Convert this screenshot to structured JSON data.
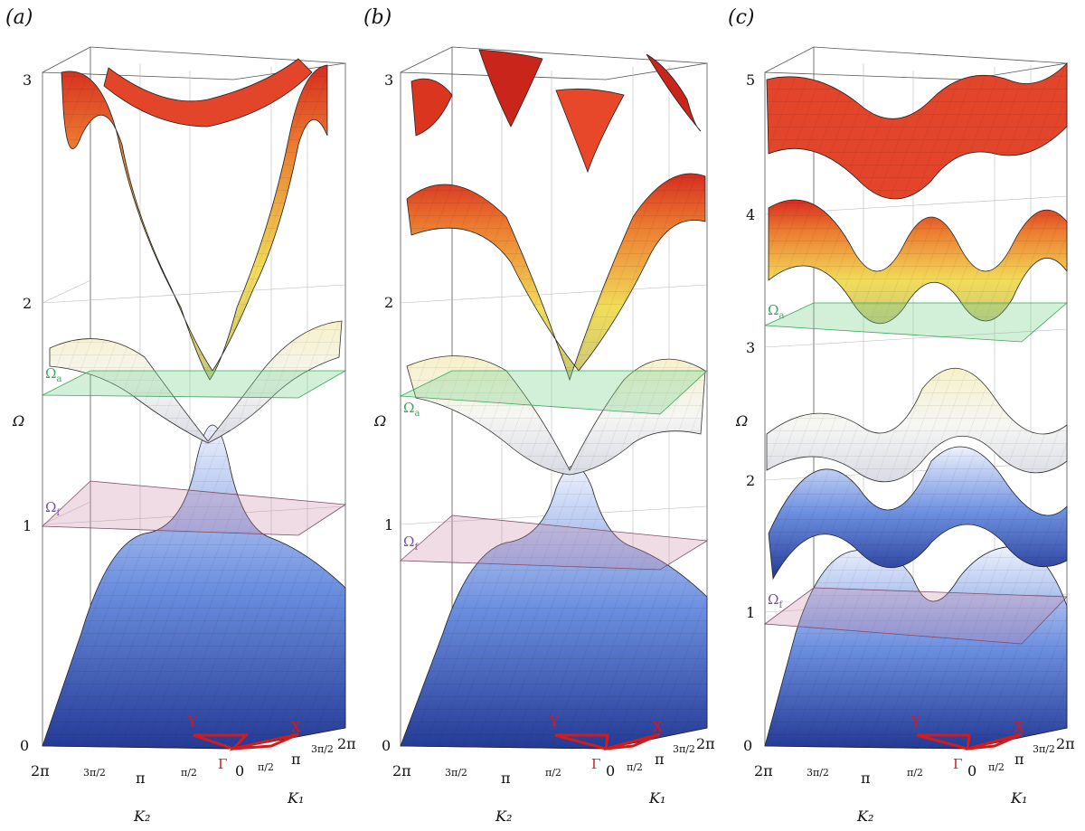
{
  "panels": [
    {
      "label": "(a)",
      "z_ticks": [
        "0",
        "1",
        "2",
        "3"
      ],
      "z_axis_label": "Ω",
      "x_ticks": [
        "2π",
        "3π/2",
        "π",
        "π/2",
        "0"
      ],
      "y_ticks": [
        "π/2",
        "π",
        "3π/2",
        "2π"
      ],
      "x_axis_label": "K₂",
      "y_axis_label": "K₁",
      "plane_labels": [
        "Ωa",
        "Ωf"
      ],
      "bz_labels": [
        "Γ",
        "X",
        "Y"
      ]
    },
    {
      "label": "(b)",
      "z_ticks": [
        "0",
        "1",
        "2",
        "3"
      ],
      "z_axis_label": "Ω",
      "x_ticks": [
        "2π",
        "3π/2",
        "π",
        "π/2",
        "0"
      ],
      "y_ticks": [
        "π/2",
        "π",
        "3π/2",
        "2π"
      ],
      "x_axis_label": "K₂",
      "y_axis_label": "K₁",
      "plane_labels": [
        "Ωa",
        "Ωf"
      ],
      "bz_labels": [
        "Γ",
        "X",
        "Y"
      ]
    },
    {
      "label": "(c)",
      "z_ticks": [
        "0",
        "1",
        "2",
        "3",
        "4",
        "5"
      ],
      "z_axis_label": "Ω",
      "x_ticks": [
        "2π",
        "3π/2",
        "π",
        "π/2",
        "0"
      ],
      "y_ticks": [
        "π/2",
        "π",
        "3π/2",
        "2π"
      ],
      "x_axis_label": "K₂",
      "y_axis_label": "K₁",
      "plane_labels": [
        "Ωa",
        "Ωf"
      ],
      "bz_labels": [
        "Γ",
        "X",
        "Y"
      ]
    }
  ]
}
